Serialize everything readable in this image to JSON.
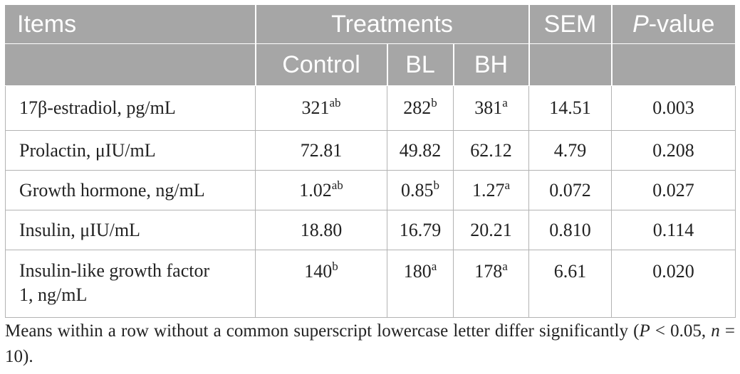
{
  "table": {
    "header": {
      "items": "Items",
      "treatments": "Treatments",
      "sem": "SEM",
      "p_italic": "P",
      "p_rest": "-value",
      "control": "Control",
      "bl": "BL",
      "bh": "BH"
    },
    "rows": [
      {
        "label": "17β-estradiol, pg/mL",
        "control": "321",
        "control_sup": "ab",
        "bl": "282",
        "bl_sup": "b",
        "bh": "381",
        "bh_sup": "a",
        "sem": "14.51",
        "p": "0.003"
      },
      {
        "label": "Prolactin, μIU/mL",
        "control": "72.81",
        "control_sup": "",
        "bl": "49.82",
        "bl_sup": "",
        "bh": "62.12",
        "bh_sup": "",
        "sem": "4.79",
        "p": "0.208"
      },
      {
        "label": "Growth hormone, ng/mL",
        "control": "1.02",
        "control_sup": "ab",
        "bl": "0.85",
        "bl_sup": "b",
        "bh": "1.27",
        "bh_sup": "a",
        "sem": "0.072",
        "p": "0.027"
      },
      {
        "label": "Insulin, μIU/mL",
        "control": "18.80",
        "control_sup": "",
        "bl": "16.79",
        "bl_sup": "",
        "bh": "20.21",
        "bh_sup": "",
        "sem": "0.810",
        "p": "0.114"
      },
      {
        "label_line1": "Insulin-like growth factor",
        "label_line2": "1, ng/mL",
        "control": "140",
        "control_sup": "b",
        "bl": "180",
        "bl_sup": "a",
        "bh": "178",
        "bh_sup": "a",
        "sem": "6.61",
        "p": "0.020"
      }
    ]
  },
  "footnote": {
    "text_a": "Means within a row without a common superscript lowercase letter differ significantly (",
    "p_symbol": "P",
    "text_b": " < 0.05, ",
    "n_symbol": "n",
    "text_c": " = 10)."
  },
  "colors": {
    "header_bg": "#a6a6a6",
    "header_text": "#ffffff",
    "grid": "#b3b3b3"
  }
}
